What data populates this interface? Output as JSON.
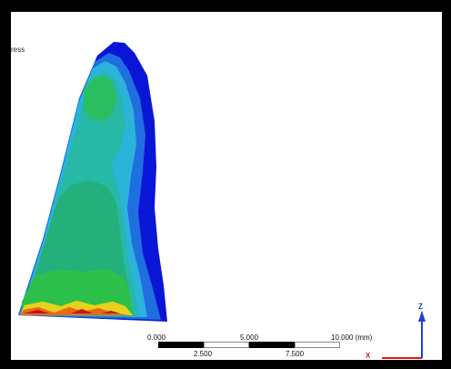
{
  "viewport": {
    "corner_label": "ress"
  },
  "scale": {
    "label_top_0": "0.000",
    "label_top_1": "5.000",
    "label_top_2": "10.000 (mm)",
    "label_bottom_0": "2.500",
    "label_bottom_1": "7.500"
  },
  "triad": {
    "z_label": "Z",
    "x_label": "X",
    "z_color": "#1f3fcf",
    "x_color": "#d11f1f"
  },
  "contour_colors": {
    "dark_blue": "#0a16d6",
    "blue": "#1f6fe0",
    "cyan": "#2bb3d9",
    "teal": "#27b8a6",
    "teal_green": "#23b07a",
    "green": "#2cc04a",
    "yellow": "#e6d21c",
    "orange": "#e86a17",
    "red": "#c7130f"
  }
}
